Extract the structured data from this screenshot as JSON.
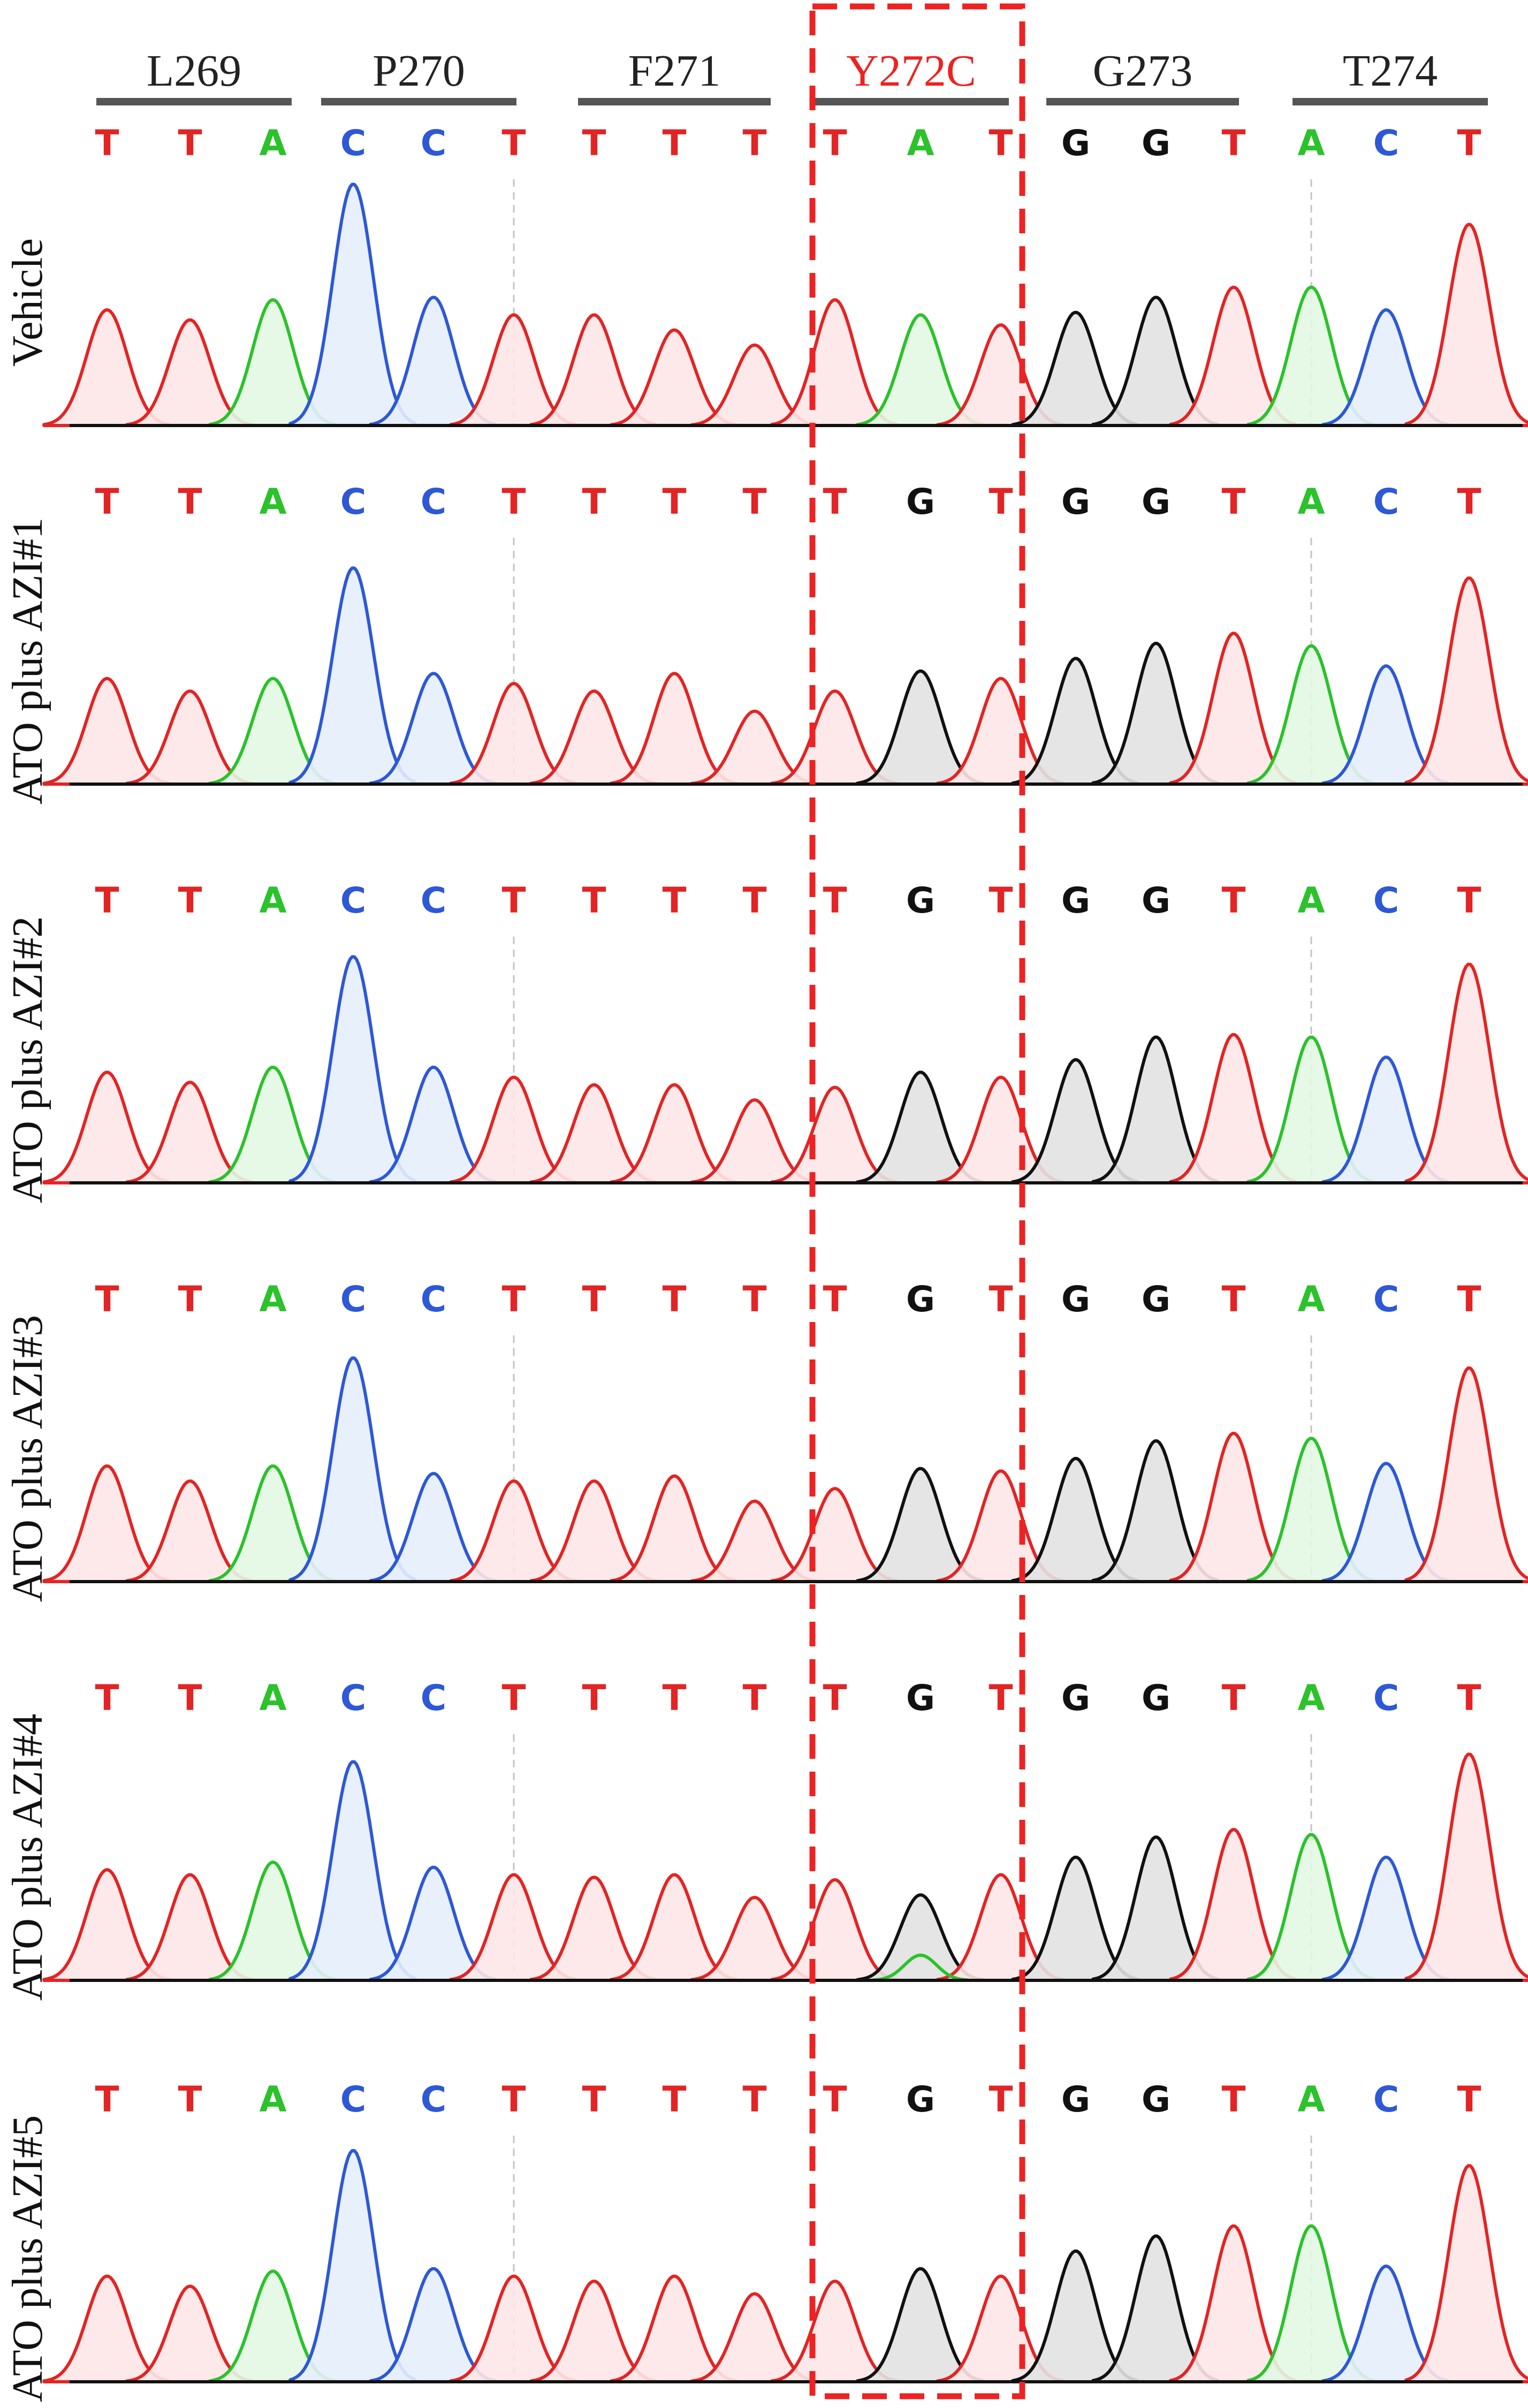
{
  "colors": {
    "A": "#2bc22b",
    "C": "#2d58d6",
    "G": "#111111",
    "T": "#e32424"
  },
  "fills": {
    "A": "#e3f7e3",
    "C": "#e6eefc",
    "G": "#e2e2e2",
    "T": "#fde7e7"
  },
  "codons": [
    {
      "label": "L269",
      "mutant": false
    },
    {
      "label": "P270",
      "mutant": false
    },
    {
      "label": "F271",
      "mutant": false
    },
    {
      "label": "Y272C",
      "mutant": true
    },
    {
      "label": "G273",
      "mutant": false
    },
    {
      "label": "T274",
      "mutant": false
    }
  ],
  "highlight_codon": "Y272C",
  "tracks": [
    {
      "label": "Vehicle",
      "bases": "TTACCTTTTTATGGTACT",
      "heights": [
        0.46,
        0.42,
        0.5,
        0.96,
        0.51,
        0.44,
        0.44,
        0.38,
        0.32,
        0.5,
        0.44,
        0.4,
        0.45,
        0.51,
        0.55,
        0.55,
        0.46,
        0.8
      ],
      "guides": [
        5,
        15
      ]
    },
    {
      "label": "ATO plus AZI#1",
      "bases": "TTACCTTTTTGTGGTACT",
      "heights": [
        0.42,
        0.37,
        0.42,
        0.86,
        0.44,
        0.4,
        0.37,
        0.44,
        0.29,
        0.37,
        0.45,
        0.42,
        0.5,
        0.56,
        0.6,
        0.55,
        0.47,
        0.82
      ],
      "guides": [
        5,
        15
      ]
    },
    {
      "label": "ATO plus AZI#2",
      "bases": "TTACCTTTTTGTGGTACT",
      "heights": [
        0.44,
        0.4,
        0.46,
        0.9,
        0.46,
        0.42,
        0.39,
        0.39,
        0.33,
        0.38,
        0.44,
        0.42,
        0.49,
        0.58,
        0.59,
        0.58,
        0.5,
        0.87
      ],
      "guides": [
        5,
        15
      ]
    },
    {
      "label": "ATO plus AZI#3",
      "bases": "TTACCTTTTTGTGGTACT",
      "heights": [
        0.46,
        0.4,
        0.46,
        0.89,
        0.43,
        0.4,
        0.4,
        0.42,
        0.32,
        0.37,
        0.45,
        0.44,
        0.49,
        0.56,
        0.59,
        0.57,
        0.47,
        0.85
      ],
      "guides": [
        5,
        15
      ]
    },
    {
      "label": "ATO plus AZI#4",
      "bases": "TTACCTTTTTGTGGTACT",
      "heights": [
        0.44,
        0.42,
        0.47,
        0.87,
        0.45,
        0.42,
        0.41,
        0.42,
        0.33,
        0.4,
        0.34,
        0.42,
        0.49,
        0.57,
        0.6,
        0.58,
        0.49,
        0.9
      ],
      "guides": [
        5,
        15
      ]
    },
    {
      "label": "ATO plus AZI#5",
      "bases": "TTACCTTTTTGTGGTACT",
      "heights": [
        0.42,
        0.38,
        0.44,
        0.92,
        0.45,
        0.42,
        0.4,
        0.42,
        0.35,
        0.4,
        0.45,
        0.42,
        0.52,
        0.58,
        0.62,
        0.62,
        0.46,
        0.86
      ],
      "guides": [
        5,
        15
      ]
    }
  ]
}
